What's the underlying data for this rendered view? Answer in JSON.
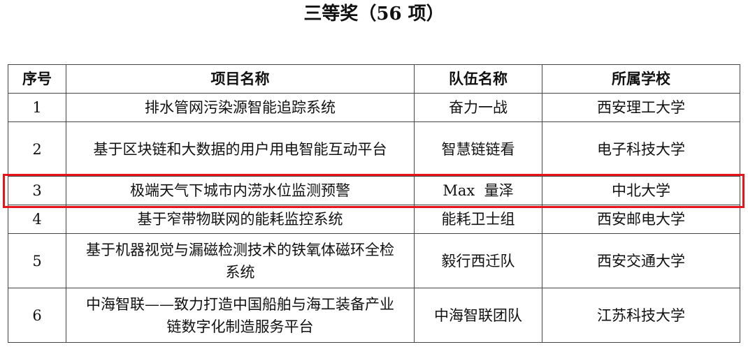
{
  "title": "三等奖（56 项）",
  "headers": [
    "序号",
    "项目名称",
    "队伍名称",
    "所属学校"
  ],
  "rows": [
    {
      "no": "1",
      "project": "排水管网污染源智能追踪系统",
      "team": "奋力一战",
      "school": "西安理工大学"
    },
    {
      "no": "2",
      "project": "基于区块链和大数据的用户用电智能互动平台",
      "team": "智慧链链看",
      "school": "电子科技大学"
    },
    {
      "no": "3",
      "project": "极端天气下城市内涝水位监测预警",
      "team": "Max  量泽",
      "school": "中北大学"
    },
    {
      "no": "4",
      "project": "基于窄带物联网的能耗监控系统",
      "team": "能耗卫士组",
      "school": "西安邮电大学"
    },
    {
      "no": "5",
      "project": "基于机器视觉与漏磁检测技术的铁氧体磁环全检系统",
      "team": "毅行西迁队",
      "school": "西安交通大学"
    },
    {
      "no": "6",
      "project": "中海智联——致力打造中国船舶与海工装备产业链数字化制造服务平台",
      "team": "中海智联团队",
      "school": "江苏科技大学"
    }
  ],
  "highlight_color": "#e8141a",
  "highlighted_row": "3"
}
